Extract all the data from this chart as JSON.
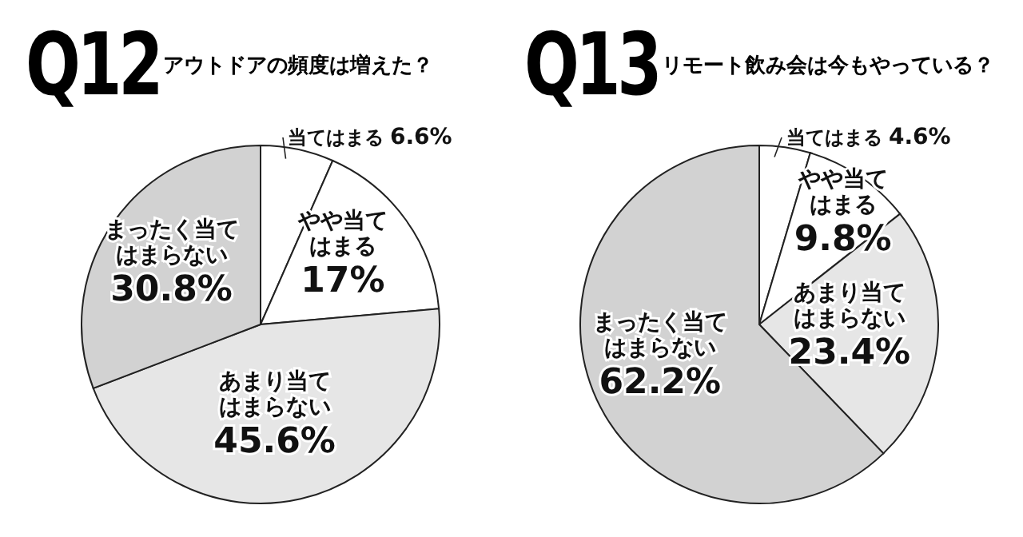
{
  "chart_data": [
    {
      "type": "pie",
      "title": "Q12",
      "subtitle": "アウトドアの頻度は増えた？",
      "categories": [
        "当てはまる",
        "やや当てはまる",
        "あまり当てはまらない",
        "まったく当てはまらない"
      ],
      "values": [
        6.6,
        17,
        45.6,
        30.8
      ],
      "value_labels": [
        "6.6%",
        "17%",
        "45.6%",
        "30.8%"
      ],
      "colors": [
        "#ffffff",
        "#ffffff",
        "#e6e6e6",
        "#d2d2d2"
      ],
      "legend": false
    },
    {
      "type": "pie",
      "title": "Q13",
      "subtitle": "リモート飲み会は今もやっている？",
      "categories": [
        "当てはまる",
        "やや当てはまる",
        "あまり当てはまらない",
        "まったく当てはまらない"
      ],
      "values": [
        4.6,
        9.8,
        23.4,
        62.2
      ],
      "value_labels": [
        "4.6%",
        "9.8%",
        "23.4%",
        "62.2%"
      ],
      "colors": [
        "#ffffff",
        "#ffffff",
        "#e6e6e6",
        "#d2d2d2"
      ],
      "legend": false
    }
  ]
}
